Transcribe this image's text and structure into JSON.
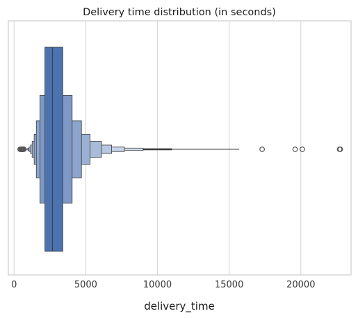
{
  "chart_data": {
    "type": "boxen",
    "orientation": "horizontal",
    "title": "Delivery time distribution (in seconds)",
    "xlabel": "delivery_time",
    "ylabel": "",
    "xlim": [
      -400,
      23500
    ],
    "xticks": [
      0,
      5000,
      10000,
      15000,
      20000
    ],
    "xtick_labels": [
      "0",
      "5000",
      "10000",
      "15000",
      "20000"
    ],
    "grid": "vertical",
    "color": "#4c72b0",
    "median": 2680,
    "whisker_line": [
      9000,
      15700
    ],
    "levels": [
      {
        "low": 2150,
        "high": 3400
      },
      {
        "low": 1800,
        "high": 4050
      },
      {
        "low": 1550,
        "high": 4700
      },
      {
        "low": 1400,
        "high": 5300
      },
      {
        "low": 1260,
        "high": 6100
      },
      {
        "low": 1150,
        "high": 6800
      },
      {
        "low": 1050,
        "high": 7700
      },
      {
        "low": 980,
        "high": 9000
      },
      {
        "low": 900,
        "high": 11000
      }
    ],
    "outliers_low": [
      420,
      480,
      520,
      560,
      600,
      640,
      680
    ],
    "outliers_high": [
      17300,
      19600,
      20100,
      22700,
      22750
    ]
  }
}
